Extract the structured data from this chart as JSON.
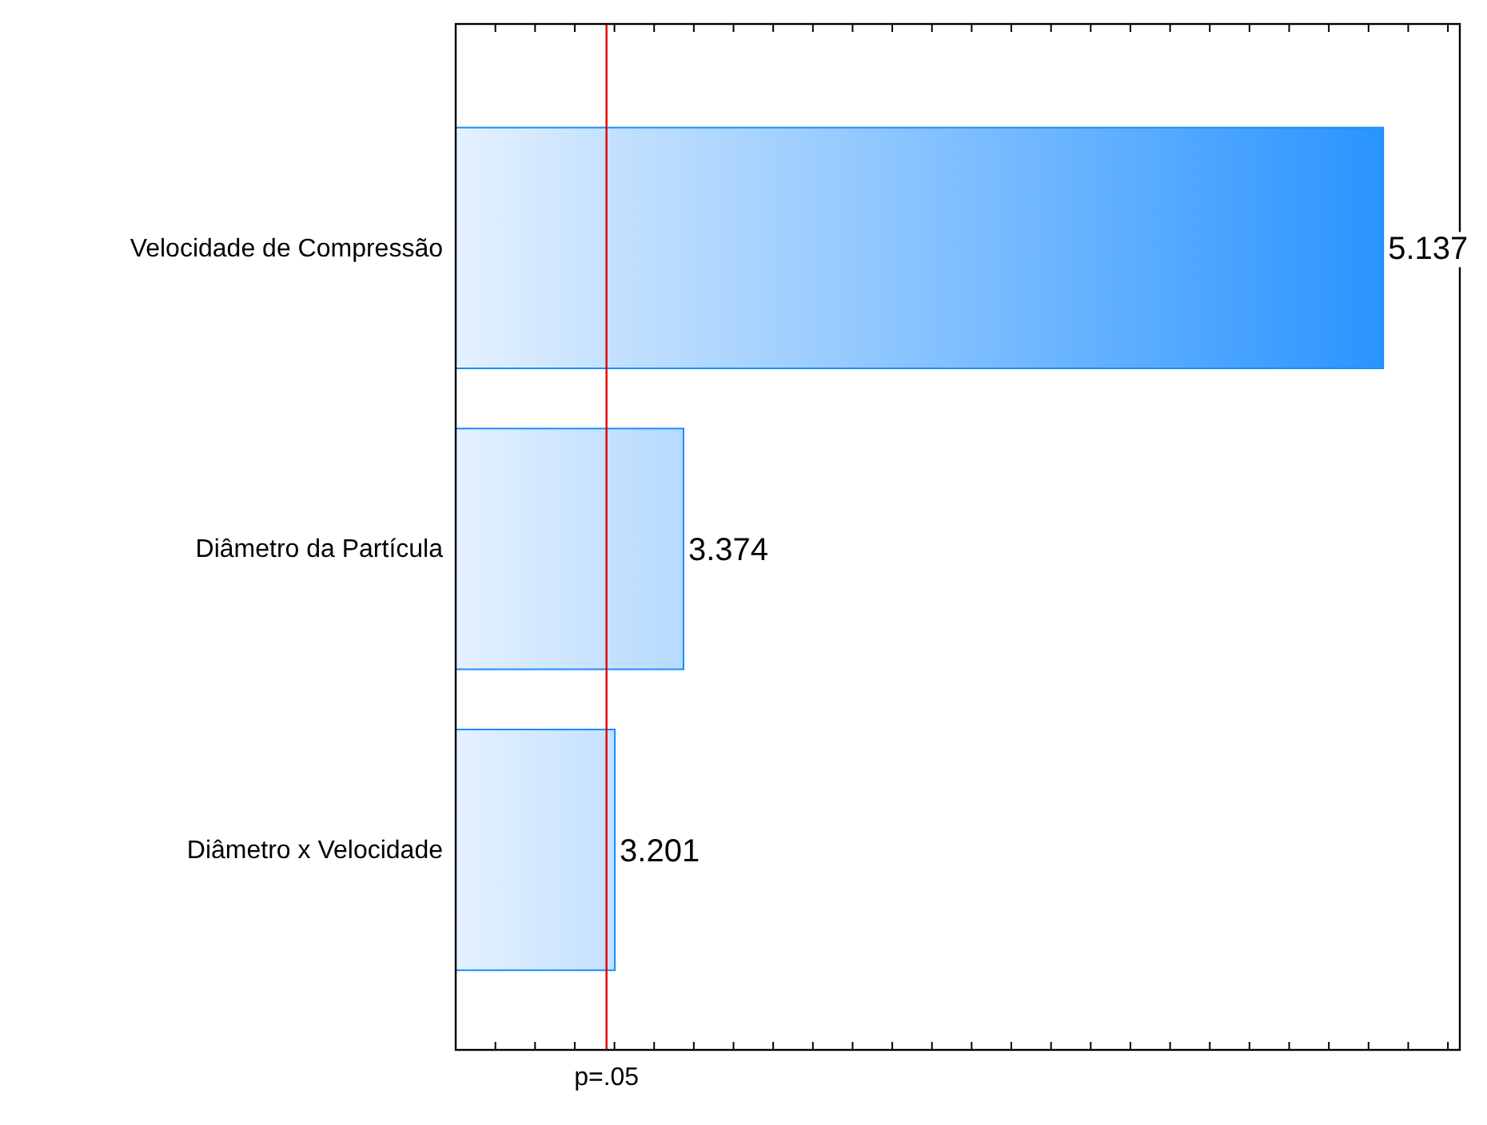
{
  "chart_data": {
    "type": "bar",
    "orientation": "horizontal",
    "categories": [
      "Velocidade de Compressão",
      "Diâmetro da Partícula",
      "Diâmetro x Velocidade"
    ],
    "values": [
      5.137,
      3.374,
      3.201
    ],
    "color": "#1a8cff",
    "data_labels": true,
    "xlim": [
      2.8,
      5.33
    ],
    "xticks": [
      {
        "value": 2.9,
        "label": null
      },
      {
        "value": 3.0,
        "label": null
      },
      {
        "value": 3.1,
        "label": null
      },
      {
        "value": 3.2,
        "label": null
      },
      {
        "value": 3.3,
        "label": null
      },
      {
        "value": 3.4,
        "label": null
      },
      {
        "value": 3.5,
        "label": null
      },
      {
        "value": 3.6,
        "label": null
      },
      {
        "value": 3.7,
        "label": null
      },
      {
        "value": 3.8,
        "label": null
      },
      {
        "value": 3.9,
        "label": null
      },
      {
        "value": 4.0,
        "label": null
      },
      {
        "value": 4.1,
        "label": null
      },
      {
        "value": 4.2,
        "label": null
      },
      {
        "value": 4.3,
        "label": null
      },
      {
        "value": 4.4,
        "label": null
      },
      {
        "value": 4.5,
        "label": null
      },
      {
        "value": 4.6,
        "label": null
      },
      {
        "value": 4.7,
        "label": null
      },
      {
        "value": 4.8,
        "label": null
      },
      {
        "value": 4.9,
        "label": null
      },
      {
        "value": 5.0,
        "label": null
      },
      {
        "value": 5.1,
        "label": null
      },
      {
        "value": 5.2,
        "label": null
      },
      {
        "value": 5.3,
        "label": null
      }
    ],
    "ref_lines": [
      {
        "axis": "x",
        "value": 3.18,
        "label": "p=.05",
        "color": "#e00000"
      }
    ]
  }
}
